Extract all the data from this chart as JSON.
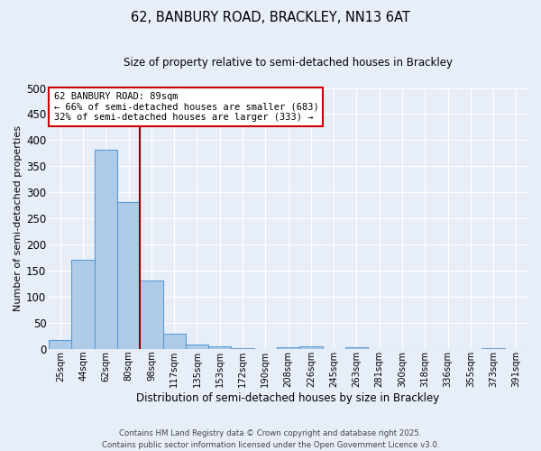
{
  "title_line1": "62, BANBURY ROAD, BRACKLEY, NN13 6AT",
  "title_line2": "Size of property relative to semi-detached houses in Brackley",
  "xlabel": "Distribution of semi-detached houses by size in Brackley",
  "ylabel": "Number of semi-detached properties",
  "categories": [
    "25sqm",
    "44sqm",
    "62sqm",
    "80sqm",
    "98sqm",
    "117sqm",
    "135sqm",
    "153sqm",
    "172sqm",
    "190sqm",
    "208sqm",
    "226sqm",
    "245sqm",
    "263sqm",
    "281sqm",
    "300sqm",
    "318sqm",
    "336sqm",
    "355sqm",
    "373sqm",
    "391sqm"
  ],
  "values": [
    17,
    172,
    381,
    281,
    131,
    29,
    9,
    5,
    2,
    0,
    4,
    5,
    0,
    3,
    0,
    0,
    1,
    0,
    0,
    2,
    0
  ],
  "bar_color": "#aecce8",
  "bar_edge_color": "#5b9bd5",
  "vline_color": "#8b0000",
  "vline_pos": 3.5,
  "annotation_title": "62 BANBURY ROAD: 89sqm",
  "annotation_line1": "← 66% of semi-detached houses are smaller (683)",
  "annotation_line2": "32% of semi-detached houses are larger (333) →",
  "annotation_box_color": "#ffffff",
  "annotation_box_edge": "#cc0000",
  "bg_color": "#e8eef8",
  "grid_color": "#ffffff",
  "footer_line1": "Contains HM Land Registry data © Crown copyright and database right 2025.",
  "footer_line2": "Contains public sector information licensed under the Open Government Licence v3.0.",
  "ylim": [
    0,
    500
  ],
  "yticks": [
    0,
    50,
    100,
    150,
    200,
    250,
    300,
    350,
    400,
    450,
    500
  ]
}
